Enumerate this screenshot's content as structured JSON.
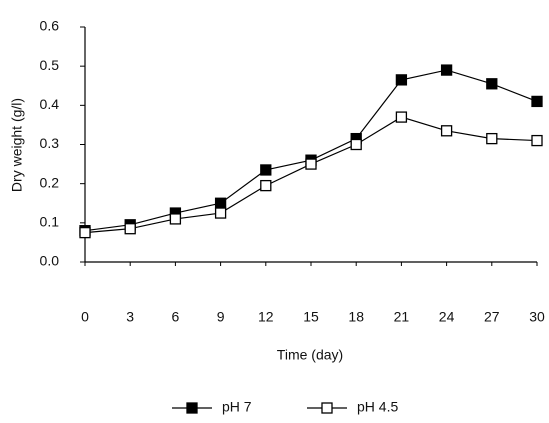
{
  "chart_data": {
    "type": "line",
    "x_label": "Time (day)",
    "y_label": "Dry weight (g/l)",
    "x": [
      0,
      3,
      6,
      9,
      12,
      15,
      18,
      21,
      24,
      27,
      30
    ],
    "series": [
      {
        "name": "pH 7",
        "color": "#000000",
        "marker": "filled",
        "values": [
          0.08,
          0.095,
          0.125,
          0.15,
          0.235,
          0.26,
          0.315,
          0.465,
          0.49,
          0.455,
          0.41
        ]
      },
      {
        "name": "pH 4.5",
        "color": "#000000",
        "marker": "open",
        "values": [
          0.075,
          0.085,
          0.11,
          0.125,
          0.195,
          0.25,
          0.3,
          0.37,
          0.335,
          0.315,
          0.31
        ]
      }
    ],
    "xlim": [
      0,
      30
    ],
    "xticks": [
      0,
      3,
      6,
      9,
      12,
      15,
      18,
      21,
      24,
      27,
      30
    ],
    "ylim": [
      0,
      0.6
    ],
    "yticks": [
      {
        "value": 0,
        "label": "0.0"
      },
      0.1,
      0.2,
      0.3,
      0.4,
      0.5,
      0.6
    ]
  }
}
